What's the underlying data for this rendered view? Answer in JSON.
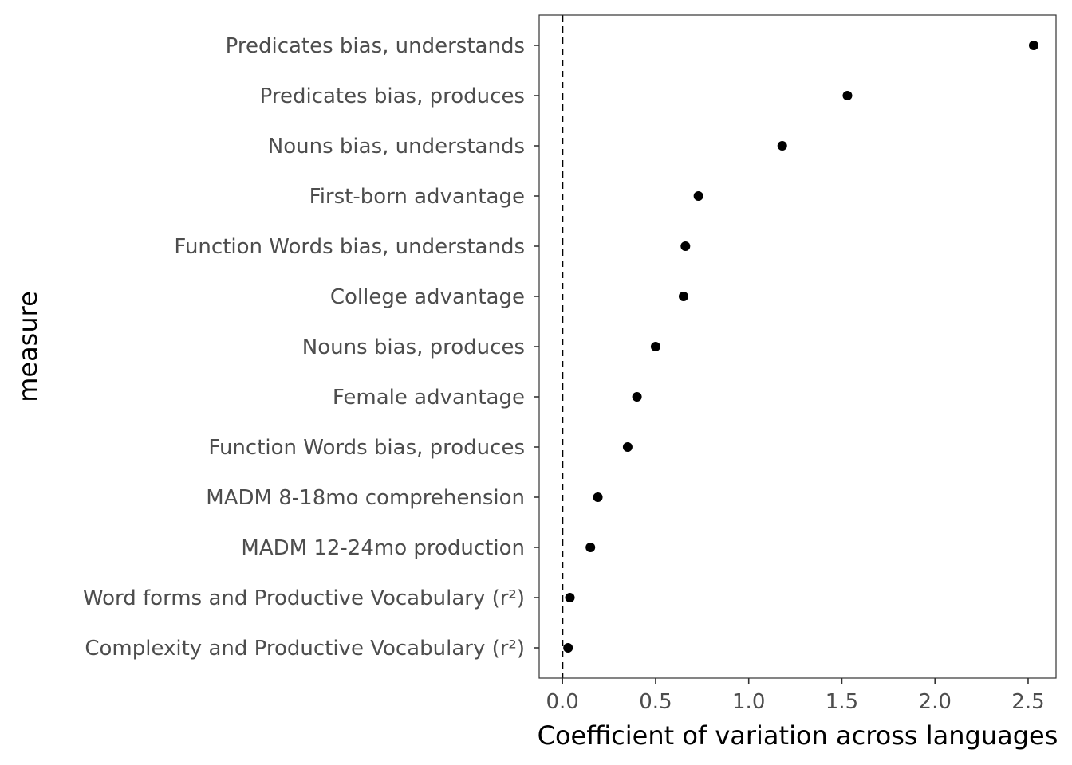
{
  "chart_data": {
    "type": "scatter",
    "xlabel": "Coefficient of variation across languages",
    "ylabel": "measure",
    "xlim": [
      -0.125,
      2.65
    ],
    "x_ticks": [
      0.0,
      0.5,
      1.0,
      1.5,
      2.0,
      2.5
    ],
    "x_tick_labels": [
      "0.0",
      "0.5",
      "1.0",
      "1.5",
      "2.0",
      "2.5"
    ],
    "reference_line": {
      "x": 0,
      "style": "dashed"
    },
    "grid": false,
    "points": [
      {
        "measure": "Predicates bias, understands",
        "value": 2.53
      },
      {
        "measure": "Predicates bias, produces",
        "value": 1.53
      },
      {
        "measure": "Nouns bias, understands",
        "value": 1.18
      },
      {
        "measure": "First-born advantage",
        "value": 0.73
      },
      {
        "measure": "Function Words bias, understands",
        "value": 0.66
      },
      {
        "measure": "College advantage",
        "value": 0.65
      },
      {
        "measure": "Nouns bias, produces",
        "value": 0.5
      },
      {
        "measure": "Female advantage",
        "value": 0.4
      },
      {
        "measure": "Function Words bias, produces",
        "value": 0.35
      },
      {
        "measure": "MADM 8-18mo comprehension",
        "value": 0.19
      },
      {
        "measure": "MADM 12-24mo production",
        "value": 0.15
      },
      {
        "measure": "Word forms and Productive Vocabulary (r²)",
        "value": 0.04
      },
      {
        "measure": "Complexity and Productive Vocabulary (r²)",
        "value": 0.03
      }
    ],
    "colors": {
      "point": "#000000",
      "axis": "#333333",
      "text": "#4d4d4d"
    }
  }
}
